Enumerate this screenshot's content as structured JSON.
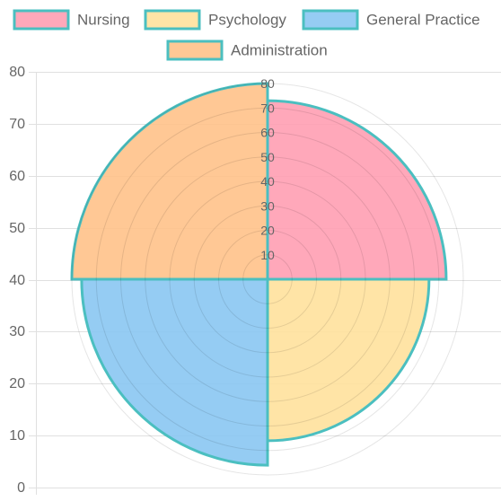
{
  "chart_data": {
    "type": "polarArea",
    "categories": [
      "Nursing",
      "Psychology",
      "General Practice",
      "Administration"
    ],
    "values": [
      73,
      66,
      76,
      80
    ],
    "colors": {
      "fills": [
        "#ff9fb3",
        "#ffe19c",
        "#8ac6f2",
        "#ffc28a"
      ],
      "border": "#4bbfc0",
      "grid": "#e0e0e0",
      "text": "#666666"
    },
    "y_axis": {
      "ticks": [
        "0",
        "10",
        "20",
        "30",
        "40",
        "50",
        "60",
        "70",
        "80"
      ],
      "range": [
        0,
        80
      ]
    },
    "r_axis": {
      "ticks": [
        "10",
        "20",
        "30",
        "40",
        "50",
        "60",
        "70",
        "80"
      ],
      "range": [
        0,
        80
      ]
    },
    "legend_position": "top"
  }
}
